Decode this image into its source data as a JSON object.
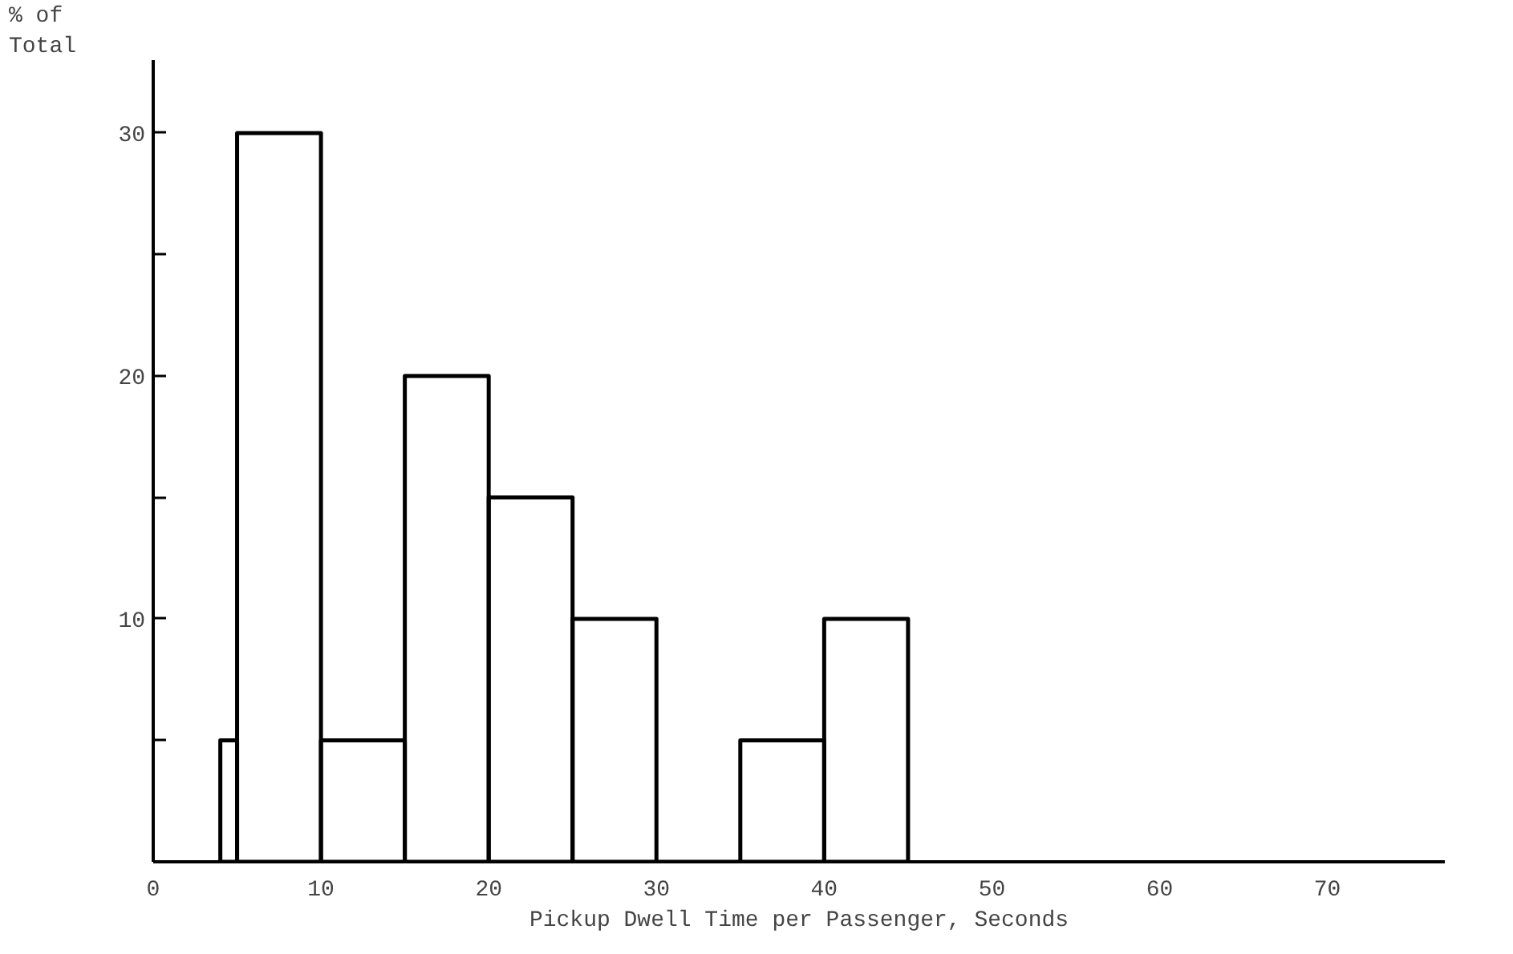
{
  "chart_data": {
    "type": "histogram",
    "xlabel": "Pickup Dwell Time per Passenger, Seconds",
    "ylabel": "% of\nTotal",
    "bins": [
      4,
      5,
      10,
      15,
      20,
      25,
      30,
      35,
      40,
      45
    ],
    "values": [
      5,
      30,
      5,
      20,
      15,
      10,
      0,
      5,
      10
    ],
    "color": "#000000",
    "xlim": [
      0,
      77
    ],
    "ylim": [
      0,
      33
    ],
    "xticks": [
      0,
      10,
      20,
      30,
      40,
      50,
      60,
      70
    ],
    "yticks": [
      {
        "value": 5,
        "label": null
      },
      10,
      {
        "value": 15,
        "label": null
      },
      20,
      {
        "value": 25,
        "label": null
      },
      30
    ],
    "grid": false
  }
}
